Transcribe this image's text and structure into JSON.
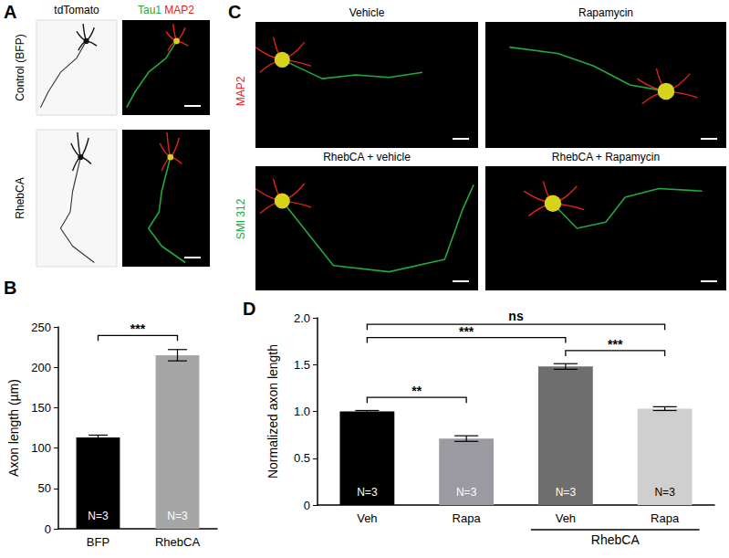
{
  "figure": {
    "A": {
      "letter": "A",
      "column_titles": [
        [
          {
            "text": "tdTomato",
            "color": "#000000"
          }
        ],
        [
          {
            "text": "Tau1",
            "color": "#23a83e"
          },
          {
            "text": "MAP2",
            "color": "#e3211c"
          }
        ]
      ],
      "row_titles": [
        "Control (BFP)",
        "RhebCA"
      ]
    },
    "C": {
      "letter": "C",
      "side_labels": [
        {
          "text": "MAP2",
          "color": "#e3211c"
        },
        {
          "text": "SMI 312",
          "color": "#23a83e"
        }
      ],
      "image_titles": [
        "Vehicle",
        "Rapamycin",
        "RhebCA + vehicle",
        "RhebCA + Rapamycin"
      ]
    }
  },
  "chart_data": [
    {
      "panel": "B",
      "type": "bar",
      "categories": [
        "BFP",
        "RhebCA"
      ],
      "values": [
        113,
        215
      ],
      "errors": [
        3,
        7
      ],
      "colors": [
        "#000000",
        "#a6a6a6"
      ],
      "y_label": "Axon length (µm)",
      "ylim": [
        0,
        250
      ],
      "yticks": [
        0,
        50,
        100,
        150,
        200,
        250
      ],
      "grid": false,
      "annotations": [
        "N=3",
        "N=3"
      ],
      "comparisons": [
        {
          "pair": [
            0,
            1
          ],
          "label": "***"
        }
      ]
    },
    {
      "panel": "D",
      "type": "bar",
      "categories": [
        "Veh",
        "Rapa",
        "Veh",
        "Rapa"
      ],
      "values": [
        1.0,
        0.71,
        1.48,
        1.03
      ],
      "errors": [
        0.01,
        0.03,
        0.03,
        0.02
      ],
      "colors": [
        "#000000",
        "#9a9aa0",
        "#6e6e6e",
        "#cfcfcf"
      ],
      "y_label": "Normalized axon length",
      "ylim": [
        0,
        2
      ],
      "yticks": [
        0,
        0.5,
        {
          "value": 1,
          "label": "1.0"
        },
        1.5,
        {
          "value": 2,
          "label": "2.0"
        }
      ],
      "grid": false,
      "annotations": [
        "N=3",
        "N=3",
        "N=3",
        "N=3"
      ],
      "group": {
        "label": "RhebCA",
        "from": 2,
        "to": 3
      },
      "comparisons": [
        {
          "pair": [
            0,
            1
          ],
          "label": "**"
        },
        {
          "pair": [
            0,
            2
          ],
          "label": "***"
        },
        {
          "pair": [
            2,
            3
          ],
          "label": "***"
        },
        {
          "pair": [
            0,
            3
          ],
          "label": "ns"
        }
      ]
    }
  ]
}
